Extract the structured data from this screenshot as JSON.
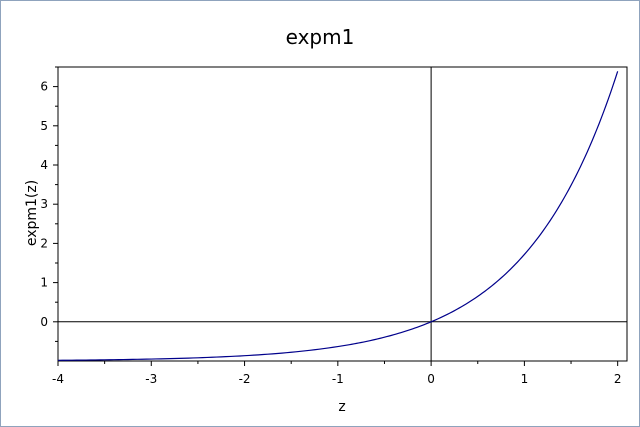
{
  "chart_data": {
    "type": "line",
    "title": "expm1",
    "xlabel": "z",
    "ylabel": "expm1(z)",
    "xlim": [
      -4,
      2.1
    ],
    "ylim": [
      -1,
      6.5
    ],
    "x_ticks": [
      -4,
      -3,
      -2,
      -1,
      0,
      1,
      2
    ],
    "y_ticks": [
      0,
      1,
      2,
      3,
      4,
      5,
      6
    ],
    "grid": false,
    "reference_lines": {
      "x": 0,
      "y": 0
    },
    "series": [
      {
        "color": "#00008b",
        "x": [
          -4,
          -3.5,
          -3,
          -2.5,
          -2,
          -1.5,
          -1,
          -0.75,
          -0.5,
          -0.25,
          0,
          0.25,
          0.5,
          0.75,
          1,
          1.25,
          1.5,
          1.75,
          2
        ],
        "y": [
          -0.982,
          -0.97,
          -0.95,
          -0.918,
          -0.865,
          -0.777,
          -0.632,
          -0.528,
          -0.393,
          -0.221,
          0,
          0.284,
          0.649,
          1.117,
          1.718,
          2.49,
          3.482,
          4.755,
          6.389
        ]
      }
    ],
    "colors": {
      "frame_border": "#8fa3bd",
      "axis": "#000000",
      "curve": "#00008b"
    }
  }
}
